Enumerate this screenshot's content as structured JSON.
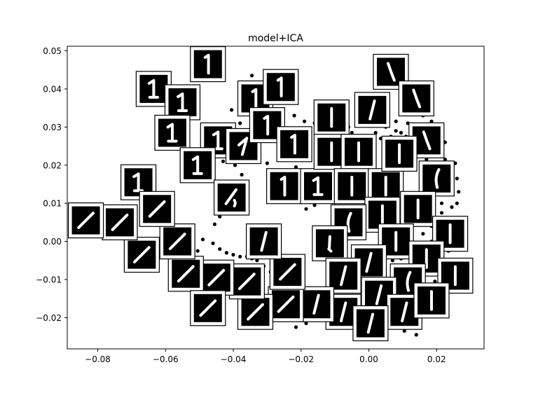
{
  "chart_data": {
    "type": "scatter",
    "title": "model+ICA",
    "xlabel": "",
    "ylabel": "",
    "xlim": [
      -0.089,
      0.034
    ],
    "ylim": [
      -0.0282,
      0.0512
    ],
    "x_ticks": [
      -0.08,
      -0.06,
      -0.04,
      -0.02,
      0.0,
      0.02
    ],
    "x_tick_labels": [
      "−0.08",
      "−0.06",
      "−0.04",
      "−0.02",
      "0.00",
      "0.02"
    ],
    "y_ticks": [
      -0.02,
      -0.01,
      0.0,
      0.01,
      0.02,
      0.03,
      0.04,
      0.05
    ],
    "y_tick_labels": [
      "−0.02",
      "−0.01",
      "0.00",
      "0.01",
      "0.02",
      "0.03",
      "0.04",
      "0.05"
    ],
    "grid": false,
    "point_color": "#000000",
    "points": [
      [
        -0.0405,
        0.0345
      ],
      [
        -0.038,
        0.031
      ],
      [
        -0.034,
        0.04
      ],
      [
        -0.036,
        0.0375
      ],
      [
        -0.043,
        0.021
      ],
      [
        -0.0395,
        0.02
      ],
      [
        -0.041,
        0.013
      ],
      [
        -0.0375,
        0.0175
      ],
      [
        -0.046,
        -0.0005
      ],
      [
        -0.044,
        -0.002
      ],
      [
        -0.042,
        -0.003
      ],
      [
        -0.04,
        -0.0035
      ],
      [
        -0.038,
        -0.004
      ],
      [
        -0.036,
        -0.004
      ],
      [
        -0.0345,
        -0.0045
      ],
      [
        -0.033,
        -0.005
      ],
      [
        -0.031,
        -0.0065
      ],
      [
        -0.029,
        -0.008
      ],
      [
        -0.0275,
        -0.0095
      ],
      [
        -0.0255,
        -0.011
      ],
      [
        -0.0235,
        -0.0125
      ],
      [
        -0.0215,
        -0.0135
      ],
      [
        -0.0195,
        -0.0145
      ],
      [
        -0.0175,
        -0.015
      ],
      [
        -0.0155,
        -0.0155
      ],
      [
        -0.0135,
        -0.016
      ],
      [
        -0.0115,
        -0.0165
      ],
      [
        -0.0095,
        -0.017
      ],
      [
        -0.0075,
        -0.017
      ],
      [
        -0.0055,
        -0.0165
      ],
      [
        -0.0035,
        -0.016
      ],
      [
        -0.0015,
        -0.0155
      ],
      [
        -0.0215,
        -0.0225
      ],
      [
        -0.0185,
        -0.0215
      ],
      [
        -0.012,
        -0.0095
      ],
      [
        -0.0095,
        -0.0085
      ],
      [
        -0.0075,
        -0.0075
      ],
      [
        -0.005,
        -0.007
      ],
      [
        -0.016,
        -0.0045
      ],
      [
        -0.0125,
        -0.002
      ],
      [
        -0.0105,
        0.001
      ],
      [
        -0.0085,
        0.0045
      ],
      [
        -0.0335,
        -0.014
      ],
      [
        -0.0365,
        -0.0125
      ],
      [
        -0.043,
        -0.011
      ],
      [
        -0.051,
        -0.0125
      ],
      [
        -0.0475,
        -0.0135
      ],
      [
        -0.049,
        0.0005
      ],
      [
        -0.0505,
        -0.0025
      ],
      [
        -0.053,
        -0.0035
      ],
      [
        -0.022,
        0.033
      ],
      [
        -0.019,
        0.0315
      ],
      [
        -0.016,
        0.031
      ],
      [
        -0.0135,
        0.0325
      ],
      [
        -0.011,
        0.0305
      ],
      [
        -0.0085,
        0.029
      ],
      [
        -0.007,
        0.0275
      ],
      [
        -0.005,
        0.0285
      ],
      [
        -0.003,
        0.0275
      ],
      [
        -0.0015,
        0.0265
      ],
      [
        0.0005,
        0.027
      ],
      [
        0.002,
        0.0285
      ],
      [
        0.0035,
        0.027
      ],
      [
        0.005,
        0.0265
      ],
      [
        0.0065,
        0.0275
      ],
      [
        0.008,
        0.029
      ],
      [
        0.0095,
        0.0285
      ],
      [
        0.011,
        0.0275
      ],
      [
        0.0125,
        0.0265
      ],
      [
        0.014,
        0.0245
      ],
      [
        0.0155,
        0.023
      ],
      [
        0.017,
        0.0215
      ],
      [
        0.0185,
        0.0195
      ],
      [
        0.0195,
        0.017
      ],
      [
        0.0205,
        0.015
      ],
      [
        0.021,
        0.0125
      ],
      [
        0.0215,
        0.01
      ],
      [
        0.0215,
        0.0075
      ],
      [
        0.0205,
        0.005
      ],
      [
        0.0195,
        0.0025
      ],
      [
        0.0185,
        0.0
      ],
      [
        0.0175,
        -0.0025
      ],
      [
        0.016,
        -0.005
      ],
      [
        0.0145,
        -0.0075
      ],
      [
        0.0125,
        -0.0095
      ],
      [
        0.0105,
        -0.011
      ],
      [
        0.008,
        -0.0125
      ],
      [
        0.0055,
        -0.014
      ],
      [
        0.003,
        -0.0155
      ],
      [
        0.0005,
        -0.017
      ],
      [
        -0.002,
        -0.018
      ],
      [
        0.0025,
        0.031
      ],
      [
        0.005,
        0.03
      ],
      [
        0.008,
        0.0315
      ],
      [
        0.0115,
        0.031
      ],
      [
        0.0145,
        0.0305
      ],
      [
        0.017,
        0.029
      ],
      [
        0.019,
        0.027
      ],
      [
        0.021,
        0.0245
      ],
      [
        0.0225,
        0.0215
      ],
      [
        0.0235,
        0.0185
      ],
      [
        0.024,
        0.0155
      ],
      [
        0.0245,
        0.0125
      ],
      [
        0.0245,
        0.009
      ],
      [
        0.024,
        0.006
      ],
      [
        0.023,
        0.003
      ],
      [
        0.022,
        0.0
      ],
      [
        0.0205,
        -0.003
      ],
      [
        0.019,
        -0.0055
      ],
      [
        0.0175,
        -0.008
      ],
      [
        0.0155,
        -0.0105
      ],
      [
        0.0135,
        -0.0125
      ],
      [
        0.011,
        -0.0145
      ],
      [
        0.0085,
        -0.016
      ],
      [
        0.006,
        -0.0175
      ],
      [
        0.0035,
        -0.019
      ],
      [
        0.001,
        -0.02
      ],
      [
        -0.0015,
        -0.021
      ],
      [
        0.0005,
        0.0305
      ],
      [
        -0.0025,
        0.0315
      ],
      [
        -0.006,
        0.03
      ],
      [
        -0.009,
        0.0315
      ],
      [
        -0.012,
        0.029
      ],
      [
        0.013,
        0.0335
      ],
      [
        0.016,
        0.033
      ],
      [
        0.0185,
        0.0315
      ],
      [
        0.021,
        0.0285
      ],
      [
        0.0225,
        0.026
      ],
      [
        0.0255,
        0.0205
      ],
      [
        0.026,
        0.0165
      ],
      [
        0.0265,
        0.013
      ],
      [
        0.026,
        0.01
      ],
      [
        0.025,
        0.0035
      ],
      [
        0.0235,
        -0.0025
      ],
      [
        0.0215,
        -0.0075
      ],
      [
        0.0195,
        -0.0105
      ],
      [
        0.017,
        -0.0135
      ],
      [
        0.0145,
        -0.0165
      ],
      [
        0.012,
        -0.0185
      ],
      [
        0.0095,
        -0.02
      ],
      [
        0.007,
        -0.0215
      ],
      [
        0.004,
        -0.0225
      ],
      [
        0.014,
        -0.0245
      ],
      [
        0.0105,
        -0.0235
      ],
      [
        -0.0185,
        0.0085
      ],
      [
        -0.016,
        0.0095
      ],
      [
        -0.0345,
        0.0435
      ],
      [
        -0.031,
        0.0365
      ],
      [
        -0.0285,
        0.033
      ],
      [
        -0.0265,
        0.025
      ],
      [
        -0.024,
        0.0225
      ],
      [
        -0.0215,
        0.0195
      ],
      [
        -0.028,
        0.0175
      ],
      [
        -0.03,
        0.0205
      ],
      [
        -0.0455,
        0.0045
      ],
      [
        -0.044,
        0.0065
      ],
      [
        0.0105,
        0.0035
      ],
      [
        0.008,
        0.0055
      ],
      [
        0.0055,
        0.0065
      ],
      [
        0.003,
        0.0075
      ],
      [
        0.0015,
        0.0095
      ],
      [
        -0.0005,
        0.011
      ],
      [
        0.012,
        -0.003
      ],
      [
        0.0095,
        -0.0045
      ],
      [
        0.007,
        -0.005
      ],
      [
        0.0045,
        -0.006
      ],
      [
        0.002,
        -0.0065
      ],
      [
        0.016,
        0.002
      ],
      [
        0.0185,
        0.004
      ],
      [
        0.0155,
        0.0065
      ],
      [
        0.0135,
        0.0085
      ],
      [
        0.011,
        0.01
      ],
      [
        0.009,
        0.0125
      ],
      [
        0.006,
        0.0135
      ],
      [
        0.0035,
        0.015
      ],
      [
        0.0015,
        0.0165
      ]
    ],
    "thumbnails": [
      {
        "x": -0.0475,
        "y": 0.0465,
        "stroke": "one-vertical-serif"
      },
      {
        "x": -0.0635,
        "y": 0.04,
        "stroke": "one-serif"
      },
      {
        "x": -0.055,
        "y": 0.0365,
        "stroke": "one-serif"
      },
      {
        "x": -0.058,
        "y": 0.0285,
        "stroke": "one-serif"
      },
      {
        "x": -0.0445,
        "y": 0.0265,
        "stroke": "one-serif"
      },
      {
        "x": -0.037,
        "y": 0.025,
        "stroke": "one-slant-serif"
      },
      {
        "x": -0.0505,
        "y": 0.02,
        "stroke": "one-serif"
      },
      {
        "x": -0.068,
        "y": 0.0155,
        "stroke": "one-serif"
      },
      {
        "x": -0.0405,
        "y": 0.0115,
        "stroke": "one-slant-loop"
      },
      {
        "x": -0.0335,
        "y": 0.0375,
        "stroke": "one-vertical-serif"
      },
      {
        "x": -0.03,
        "y": 0.0305,
        "stroke": "one-vertical-serif"
      },
      {
        "x": -0.026,
        "y": 0.0405,
        "stroke": "one-vertical-serif"
      },
      {
        "x": -0.022,
        "y": 0.0255,
        "stroke": "one-vertical-serif"
      },
      {
        "x": -0.025,
        "y": 0.0145,
        "stroke": "one-vertical-serif"
      },
      {
        "x": -0.015,
        "y": 0.0145,
        "stroke": "one-serif"
      },
      {
        "x": -0.011,
        "y": 0.0325,
        "stroke": "one-vertical"
      },
      {
        "x": -0.011,
        "y": 0.0235,
        "stroke": "one-vertical"
      },
      {
        "x": -0.003,
        "y": 0.0235,
        "stroke": "one-vertical"
      },
      {
        "x": 0.001,
        "y": 0.0345,
        "stroke": "one-slant"
      },
      {
        "x": -0.005,
        "y": 0.0145,
        "stroke": "one-vertical"
      },
      {
        "x": 0.005,
        "y": 0.0145,
        "stroke": "one-vertical"
      },
      {
        "x": 0.0065,
        "y": 0.0445,
        "stroke": "one-slant-steep"
      },
      {
        "x": 0.014,
        "y": 0.0375,
        "stroke": "one-slant-steep"
      },
      {
        "x": 0.017,
        "y": 0.0265,
        "stroke": "one-slant-steep"
      },
      {
        "x": 0.009,
        "y": 0.023,
        "stroke": "one-vertical"
      },
      {
        "x": 0.02,
        "y": 0.0165,
        "stroke": "one-curved"
      },
      {
        "x": 0.0145,
        "y": 0.0085,
        "stroke": "one-vertical"
      },
      {
        "x": 0.004,
        "y": 0.007,
        "stroke": "one-vertical"
      },
      {
        "x": -0.006,
        "y": 0.005,
        "stroke": "one-curved"
      },
      {
        "x": -0.0115,
        "y": -0.0005,
        "stroke": "one-dot"
      },
      {
        "x": 0.008,
        "y": 0.0,
        "stroke": "one-vertical"
      },
      {
        "x": 0.024,
        "y": 0.002,
        "stroke": "one-vertical"
      },
      {
        "x": 0.017,
        "y": -0.0045,
        "stroke": "one-vertical"
      },
      {
        "x": 0.0255,
        "y": -0.009,
        "stroke": "one-vertical"
      },
      {
        "x": 0.0,
        "y": -0.0055,
        "stroke": "one-slant"
      },
      {
        "x": -0.0075,
        "y": -0.009,
        "stroke": "one-slant"
      },
      {
        "x": 0.0115,
        "y": -0.0105,
        "stroke": "one-curved"
      },
      {
        "x": 0.003,
        "y": -0.014,
        "stroke": "one-slant"
      },
      {
        "x": 0.0105,
        "y": -0.0185,
        "stroke": "one-slant"
      },
      {
        "x": 0.0185,
        "y": -0.0155,
        "stroke": "one-vertical"
      },
      {
        "x": -0.0075,
        "y": -0.0185,
        "stroke": "one-slant"
      },
      {
        "x": 0.0005,
        "y": -0.0215,
        "stroke": "one-slant"
      },
      {
        "x": -0.0155,
        "y": -0.0165,
        "stroke": "one-slant"
      },
      {
        "x": -0.0245,
        "y": -0.0165,
        "stroke": "one-slant-45"
      },
      {
        "x": -0.0335,
        "y": -0.0185,
        "stroke": "one-slant-45"
      },
      {
        "x": -0.024,
        "y": -0.008,
        "stroke": "one-slant-45"
      },
      {
        "x": -0.031,
        "y": 0.0,
        "stroke": "one-slant"
      },
      {
        "x": -0.036,
        "y": -0.0105,
        "stroke": "one-slant-45"
      },
      {
        "x": -0.045,
        "y": -0.0095,
        "stroke": "one-slant-45"
      },
      {
        "x": -0.054,
        "y": -0.0085,
        "stroke": "one-slant-45"
      },
      {
        "x": -0.0475,
        "y": -0.0175,
        "stroke": "one-slant-45"
      },
      {
        "x": -0.0565,
        "y": 0.0,
        "stroke": "one-slant-45"
      },
      {
        "x": -0.067,
        "y": -0.0035,
        "stroke": "one-slant-45"
      },
      {
        "x": -0.0625,
        "y": 0.0085,
        "stroke": "one-slant-45"
      },
      {
        "x": -0.0735,
        "y": 0.005,
        "stroke": "one-slant-45"
      },
      {
        "x": -0.0835,
        "y": 0.0055,
        "stroke": "one-slant-45"
      }
    ]
  }
}
